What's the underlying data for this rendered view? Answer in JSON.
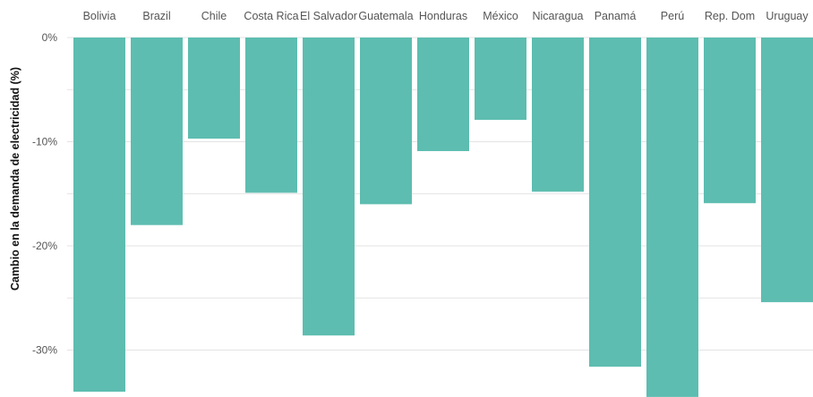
{
  "chart_data": {
    "type": "bar",
    "title": "",
    "xlabel": "",
    "ylabel": "Cambio en la demanda de electricidad (%)",
    "categories": [
      "Bolivia",
      "Brazil",
      "Chile",
      "Costa Rica",
      "El Salvador",
      "Guatemala",
      "Honduras",
      "México",
      "Nicaragua",
      "Panamá",
      "Perú",
      "Rep. Dom",
      "Uruguay"
    ],
    "values": [
      -34,
      -18,
      -9.7,
      -14.9,
      -28.6,
      -16,
      -10.9,
      -7.9,
      -14.8,
      -31.6,
      -34.5,
      -15.9,
      -25.4
    ],
    "ylim": [
      -34.5,
      0
    ],
    "yticks": [
      0,
      -10,
      -20,
      -30
    ],
    "ytick_labels": [
      "0%",
      "-10%",
      "-20%",
      "-30%"
    ],
    "minor_gridlines": [
      -5,
      -15,
      -25
    ],
    "grid": true,
    "bar_color": "#5dbdb0",
    "grid_color": "#e3e3e3"
  }
}
